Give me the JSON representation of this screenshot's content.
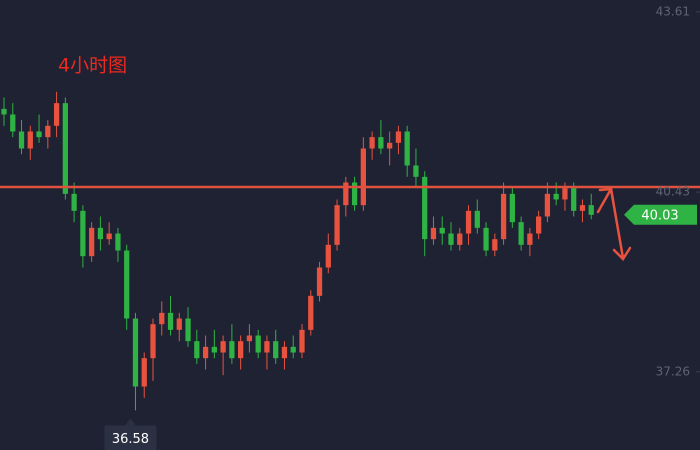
{
  "chart_data": {
    "type": "candlestick",
    "title": "4小时图",
    "open": [
      41.9,
      41.8,
      41.5,
      41.2,
      41.5,
      41.4,
      41.6,
      42.0,
      40.4,
      40.1,
      39.3,
      39.8,
      39.6,
      39.7,
      39.4,
      38.2,
      37.0,
      37.5,
      38.1,
      38.3,
      38.0,
      38.2,
      37.8,
      37.5,
      37.7,
      37.6,
      37.8,
      37.5,
      37.8,
      37.9,
      37.6,
      37.8,
      37.5,
      37.7,
      37.6,
      38.0,
      38.6,
      39.1,
      39.5,
      40.2,
      40.6,
      40.2,
      41.2,
      41.4,
      41.2,
      41.3,
      41.5,
      40.9,
      40.7,
      39.6,
      39.8,
      39.7,
      39.5,
      39.7,
      40.1,
      39.8,
      39.4,
      39.6,
      40.4,
      39.9,
      39.5,
      39.7,
      40.0,
      40.4,
      40.3,
      40.5,
      40.1,
      40.2
    ],
    "high": [
      42.1,
      42.0,
      41.7,
      41.6,
      41.8,
      41.7,
      42.2,
      42.1,
      40.6,
      40.2,
      39.9,
      40.0,
      39.9,
      39.8,
      39.5,
      38.3,
      37.6,
      38.2,
      38.5,
      38.6,
      38.3,
      38.4,
      38.0,
      37.9,
      38.0,
      37.9,
      38.1,
      37.9,
      38.1,
      38.0,
      37.9,
      38.0,
      37.8,
      37.9,
      38.1,
      38.7,
      39.2,
      39.7,
      40.3,
      40.7,
      40.7,
      41.4,
      41.5,
      41.7,
      41.5,
      41.6,
      41.6,
      41.2,
      40.8,
      40.0,
      40.0,
      39.9,
      39.8,
      40.2,
      40.3,
      39.9,
      39.7,
      40.6,
      40.5,
      40.0,
      39.8,
      40.1,
      40.6,
      40.6,
      40.6,
      40.6,
      40.3,
      40.4
    ],
    "low": [
      41.6,
      41.4,
      41.1,
      41.0,
      41.3,
      41.2,
      41.4,
      40.3,
      39.9,
      39.1,
      39.2,
      39.4,
      39.5,
      39.2,
      38.0,
      36.58,
      36.8,
      37.1,
      37.9,
      37.9,
      37.8,
      37.7,
      37.4,
      37.3,
      37.5,
      37.2,
      37.4,
      37.3,
      37.6,
      37.5,
      37.3,
      37.4,
      37.3,
      37.5,
      37.5,
      37.9,
      38.5,
      39.0,
      39.4,
      40.0,
      40.1,
      40.1,
      41.0,
      41.1,
      40.9,
      41.1,
      40.7,
      40.5,
      39.3,
      39.5,
      39.5,
      39.4,
      39.4,
      39.5,
      39.7,
      39.3,
      39.3,
      39.5,
      39.8,
      39.4,
      39.3,
      39.6,
      39.9,
      40.2,
      40.1,
      40.0,
      39.9,
      39.95
    ],
    "close": [
      41.8,
      41.5,
      41.2,
      41.5,
      41.4,
      41.6,
      42.0,
      40.4,
      40.1,
      39.3,
      39.8,
      39.6,
      39.7,
      39.4,
      38.2,
      37.0,
      37.5,
      38.1,
      38.3,
      38.0,
      38.2,
      37.8,
      37.5,
      37.7,
      37.6,
      37.8,
      37.5,
      37.8,
      37.9,
      37.6,
      37.8,
      37.5,
      37.7,
      37.6,
      38.0,
      38.6,
      39.1,
      39.5,
      40.2,
      40.6,
      40.2,
      41.2,
      41.4,
      41.2,
      41.3,
      41.5,
      40.9,
      40.7,
      39.6,
      39.8,
      39.7,
      39.5,
      39.7,
      40.1,
      39.8,
      39.4,
      39.6,
      40.4,
      39.9,
      39.5,
      39.7,
      40.0,
      40.4,
      40.3,
      40.5,
      40.1,
      40.2,
      40.03
    ],
    "up_color": "#e8533f",
    "down_color": "#2fb344",
    "ylim": [
      35.88,
      43.82
    ],
    "yticks": [
      43.61,
      40.43,
      37.26
    ],
    "level_line": {
      "value": 40.52,
      "color": "#e0523f"
    }
  }
}
